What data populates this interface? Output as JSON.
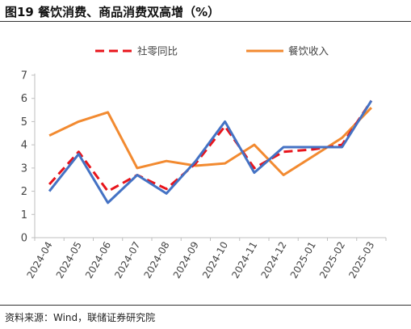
{
  "figure": {
    "title": "图19 餐饮消费、商品消费双高增（%）",
    "source": "资料来源：Wind，联储证券研究院"
  },
  "colors": {
    "retail_total": "#e8141b",
    "catering": "#f28a30",
    "third_series": "#4472c4",
    "axis": "#bfbfbf",
    "text": "#444444"
  },
  "chart_data": {
    "type": "line",
    "title": "",
    "xlabel": "",
    "ylabel": "",
    "categories": [
      "2024-04",
      "2024-05",
      "2024-06",
      "2024-07",
      "2024-08",
      "2024-09",
      "2024-10",
      "2024-11",
      "2024-12",
      "2025-01",
      "2025-02",
      "2025-03"
    ],
    "ylim": [
      0,
      7
    ],
    "yticks": [
      0,
      1,
      2,
      3,
      4,
      5,
      6,
      7
    ],
    "legend_position": "top",
    "grid": false,
    "series": [
      {
        "name": "社零同比",
        "style": "dashed",
        "color": "#e8141b",
        "values": [
          2.3,
          3.7,
          2.0,
          2.7,
          2.1,
          3.2,
          4.8,
          3.0,
          3.7,
          3.8,
          4.0,
          5.9
        ]
      },
      {
        "name": "餐饮收入",
        "style": "solid",
        "color": "#f28a30",
        "values": [
          4.4,
          5.0,
          5.4,
          3.0,
          3.3,
          3.1,
          3.2,
          4.0,
          2.7,
          3.5,
          4.3,
          5.6
        ]
      },
      {
        "name": "",
        "style": "solid",
        "color": "#4472c4",
        "values": [
          2.0,
          3.6,
          1.5,
          2.7,
          1.9,
          3.3,
          5.0,
          2.8,
          3.9,
          3.9,
          3.9,
          5.9
        ]
      }
    ]
  }
}
